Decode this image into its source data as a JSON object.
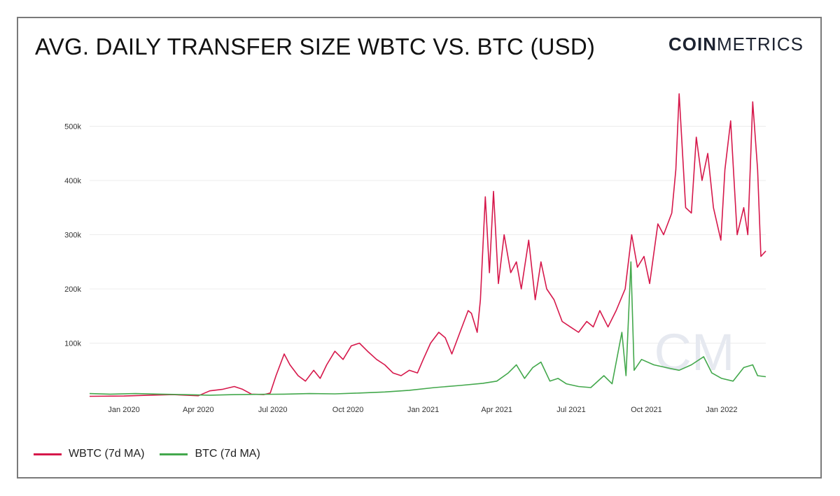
{
  "header": {
    "title": "AVG. DAILY TRANSFER SIZE WBTC VS. BTC (USD)",
    "brand_bold": "COIN",
    "brand_light": "METRICS",
    "watermark": "CM"
  },
  "colors": {
    "wbtc": "#d6184b",
    "btc": "#43a84c",
    "grid": "#ececec"
  },
  "chart_data": {
    "type": "line",
    "title": "AVG. DAILY TRANSFER SIZE WBTC VS. BTC (USD)",
    "xlabel": "",
    "ylabel": "",
    "x_ticks": [
      "Jan 2020",
      "Apr 2020",
      "Jul 2020",
      "Oct 2020",
      "Jan 2021",
      "Apr 2021",
      "Jul 2021",
      "Oct 2021",
      "Jan 2022"
    ],
    "y_ticks": [
      "100k",
      "200k",
      "300k",
      "400k",
      "500k"
    ],
    "ylim": [
      0,
      560000
    ],
    "xlim": [
      "2019-11-20",
      "2022-02-24"
    ],
    "grid": true,
    "legend_position": "bottom-left",
    "series": [
      {
        "name": "WBTC (7d MA)",
        "color": "#d6184b",
        "points": [
          [
            "2019-11-20",
            2000
          ],
          [
            "2020-01-01",
            2500
          ],
          [
            "2020-02-01",
            4000
          ],
          [
            "2020-03-01",
            5000
          ],
          [
            "2020-04-01",
            3000
          ],
          [
            "2020-04-15",
            12000
          ],
          [
            "2020-05-01",
            15000
          ],
          [
            "2020-05-15",
            20000
          ],
          [
            "2020-05-25",
            15000
          ],
          [
            "2020-06-05",
            6000
          ],
          [
            "2020-06-20",
            5000
          ],
          [
            "2020-06-28",
            8000
          ],
          [
            "2020-07-05",
            40000
          ],
          [
            "2020-07-15",
            80000
          ],
          [
            "2020-07-22",
            60000
          ],
          [
            "2020-08-01",
            40000
          ],
          [
            "2020-08-10",
            30000
          ],
          [
            "2020-08-20",
            50000
          ],
          [
            "2020-08-28",
            35000
          ],
          [
            "2020-09-05",
            60000
          ],
          [
            "2020-09-15",
            85000
          ],
          [
            "2020-09-25",
            70000
          ],
          [
            "2020-10-05",
            95000
          ],
          [
            "2020-10-15",
            100000
          ],
          [
            "2020-10-25",
            85000
          ],
          [
            "2020-11-05",
            70000
          ],
          [
            "2020-11-15",
            60000
          ],
          [
            "2020-11-25",
            45000
          ],
          [
            "2020-12-05",
            40000
          ],
          [
            "2020-12-15",
            50000
          ],
          [
            "2020-12-25",
            45000
          ],
          [
            "2021-01-01",
            70000
          ],
          [
            "2021-01-10",
            100000
          ],
          [
            "2021-01-20",
            120000
          ],
          [
            "2021-01-28",
            110000
          ],
          [
            "2021-02-05",
            80000
          ],
          [
            "2021-02-15",
            120000
          ],
          [
            "2021-02-25",
            160000
          ],
          [
            "2021-03-01",
            155000
          ],
          [
            "2021-03-08",
            120000
          ],
          [
            "2021-03-12",
            180000
          ],
          [
            "2021-03-18",
            370000
          ],
          [
            "2021-03-23",
            230000
          ],
          [
            "2021-03-28",
            380000
          ],
          [
            "2021-04-03",
            210000
          ],
          [
            "2021-04-10",
            300000
          ],
          [
            "2021-04-18",
            230000
          ],
          [
            "2021-04-25",
            250000
          ],
          [
            "2021-05-01",
            200000
          ],
          [
            "2021-05-10",
            290000
          ],
          [
            "2021-05-18",
            180000
          ],
          [
            "2021-05-25",
            250000
          ],
          [
            "2021-06-01",
            200000
          ],
          [
            "2021-06-10",
            180000
          ],
          [
            "2021-06-20",
            140000
          ],
          [
            "2021-06-30",
            130000
          ],
          [
            "2021-07-10",
            120000
          ],
          [
            "2021-07-20",
            140000
          ],
          [
            "2021-07-28",
            130000
          ],
          [
            "2021-08-05",
            160000
          ],
          [
            "2021-08-15",
            130000
          ],
          [
            "2021-08-25",
            160000
          ],
          [
            "2021-09-05",
            200000
          ],
          [
            "2021-09-13",
            300000
          ],
          [
            "2021-09-20",
            240000
          ],
          [
            "2021-09-28",
            260000
          ],
          [
            "2021-10-05",
            210000
          ],
          [
            "2021-10-15",
            320000
          ],
          [
            "2021-10-22",
            300000
          ],
          [
            "2021-11-01",
            340000
          ],
          [
            "2021-11-06",
            420000
          ],
          [
            "2021-11-10",
            560000
          ],
          [
            "2021-11-18",
            350000
          ],
          [
            "2021-11-25",
            340000
          ],
          [
            "2021-12-01",
            480000
          ],
          [
            "2021-12-08",
            400000
          ],
          [
            "2021-12-15",
            450000
          ],
          [
            "2021-12-22",
            350000
          ],
          [
            "2021-12-31",
            290000
          ],
          [
            "2022-01-05",
            420000
          ],
          [
            "2022-01-12",
            510000
          ],
          [
            "2022-01-20",
            300000
          ],
          [
            "2022-01-28",
            350000
          ],
          [
            "2022-02-02",
            300000
          ],
          [
            "2022-02-08",
            545000
          ],
          [
            "2022-02-14",
            420000
          ],
          [
            "2022-02-18",
            260000
          ],
          [
            "2022-02-24",
            270000
          ]
        ]
      },
      {
        "name": "BTC (7d MA)",
        "color": "#43a84c",
        "points": [
          [
            "2019-11-20",
            7000
          ],
          [
            "2019-12-15",
            6000
          ],
          [
            "2020-01-15",
            7000
          ],
          [
            "2020-02-15",
            6000
          ],
          [
            "2020-03-15",
            5000
          ],
          [
            "2020-04-15",
            4000
          ],
          [
            "2020-05-15",
            5000
          ],
          [
            "2020-06-15",
            5500
          ],
          [
            "2020-07-15",
            6000
          ],
          [
            "2020-08-15",
            7000
          ],
          [
            "2020-09-15",
            6500
          ],
          [
            "2020-10-15",
            8000
          ],
          [
            "2020-11-15",
            10000
          ],
          [
            "2020-12-15",
            13000
          ],
          [
            "2021-01-15",
            18000
          ],
          [
            "2021-02-15",
            22000
          ],
          [
            "2021-03-15",
            26000
          ],
          [
            "2021-04-01",
            30000
          ],
          [
            "2021-04-15",
            45000
          ],
          [
            "2021-04-25",
            60000
          ],
          [
            "2021-05-05",
            35000
          ],
          [
            "2021-05-15",
            55000
          ],
          [
            "2021-05-25",
            65000
          ],
          [
            "2021-06-05",
            30000
          ],
          [
            "2021-06-15",
            35000
          ],
          [
            "2021-06-25",
            25000
          ],
          [
            "2021-07-10",
            20000
          ],
          [
            "2021-07-25",
            18000
          ],
          [
            "2021-08-10",
            40000
          ],
          [
            "2021-08-20",
            25000
          ],
          [
            "2021-09-01",
            120000
          ],
          [
            "2021-09-06",
            40000
          ],
          [
            "2021-09-12",
            250000
          ],
          [
            "2021-09-16",
            50000
          ],
          [
            "2021-09-25",
            70000
          ],
          [
            "2021-10-10",
            60000
          ],
          [
            "2021-10-25",
            55000
          ],
          [
            "2021-11-10",
            50000
          ],
          [
            "2021-11-25",
            60000
          ],
          [
            "2021-12-10",
            75000
          ],
          [
            "2021-12-20",
            45000
          ],
          [
            "2022-01-01",
            35000
          ],
          [
            "2022-01-15",
            30000
          ],
          [
            "2022-01-28",
            55000
          ],
          [
            "2022-02-08",
            60000
          ],
          [
            "2022-02-14",
            40000
          ],
          [
            "2022-02-24",
            38000
          ]
        ]
      }
    ]
  }
}
